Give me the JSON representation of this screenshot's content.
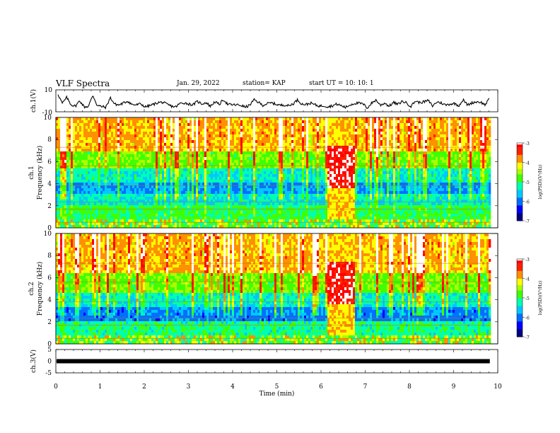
{
  "header": {
    "title": "VLF Spectra",
    "date": "Jan. 29, 2022",
    "station": "station= KAP",
    "start_ut": "start  UT =   10: 10: 1"
  },
  "chart_data": [
    {
      "type": "line",
      "ylabel": "ch.1(V)",
      "ylim": [
        -10,
        10
      ],
      "yticks": [
        "10",
        "-10"
      ],
      "xlim": [
        0,
        10
      ],
      "series": [
        {
          "values": [
            6.2,
            -2.4,
            3.1,
            -3.5,
            -4.9,
            0.2,
            -5.5,
            -5.1,
            5.3,
            -4.3,
            -5.2,
            -6.0,
            2.9,
            -3.0,
            -3.8,
            -2.1,
            -0.2,
            -3.4,
            -3.7,
            -2.7,
            -5.6,
            -4.5,
            -3.1,
            -1.5,
            -1.3,
            -3.2,
            -4.8,
            -5.6,
            -2.4,
            -1.8,
            -2.9,
            -3.6,
            -0.6,
            -2.7,
            -1.6,
            -5.0,
            -0.8,
            -3.4,
            1.3,
            -3.4,
            -3.6,
            -3.7,
            -4.1,
            -5.8,
            -4.0,
            0.9,
            -1.3,
            -4.1,
            -2.6,
            -1.9,
            -3.0,
            -4.1,
            -3.6,
            -4.6,
            -2.5,
            0.9,
            -3.0,
            -3.3,
            -2.1,
            -3.6,
            -4.8,
            -4.4,
            -5.3,
            -4.5,
            -3.0,
            -4.4,
            -6.0,
            -3.8,
            -2.3,
            -2.1,
            -2.9,
            -6.5,
            -2.1,
            0.8,
            -4.1,
            -1.9,
            -5.0,
            -1.5,
            -3.3,
            -0.4,
            -1.8,
            -5.1,
            -0.2,
            -1.6,
            -0.9,
            0.3,
            -4.8,
            -0.9,
            -2.0,
            -3.9,
            -2.9,
            -2.4,
            -4.4,
            0.9,
            -3.8,
            -1.9,
            -0.9,
            -1.1,
            -3.7,
            1.6
          ]
        }
      ]
    },
    {
      "type": "heatmap",
      "ylabel": "ch.1\nFrequency (kHz)",
      "ylim": [
        0,
        10
      ],
      "yticks": [
        "0",
        "2",
        "4",
        "6",
        "8",
        "10"
      ],
      "xlim": [
        0,
        10
      ],
      "colorbar": {
        "range": [
          -7,
          -3
        ],
        "ticks": [
          "-3",
          "-4",
          "-5",
          "-6",
          "-7"
        ],
        "label": "log(PSD)(V²/Hz)"
      },
      "bands": [
        {
          "f_min": 0.0,
          "f_max": 0.8,
          "level": -4.5,
          "note": "mixed striped low band"
        },
        {
          "f_min": 0.8,
          "f_max": 2.0,
          "level": -5.0
        },
        {
          "f_min": 2.0,
          "f_max": 3.0,
          "level": -5.4
        },
        {
          "f_min": 3.0,
          "f_max": 4.2,
          "level": -5.9
        },
        {
          "f_min": 4.2,
          "f_max": 5.5,
          "level": -5.4
        },
        {
          "f_min": 5.5,
          "f_max": 7.0,
          "level": -4.8
        },
        {
          "f_min": 7.0,
          "f_max": 10.0,
          "level": -4.1
        }
      ],
      "broadband_interval_min": [
        6.1,
        6.75
      ]
    },
    {
      "type": "heatmap",
      "ylabel": "ch.2\nFrequency (kHz)",
      "ylim": [
        0,
        10
      ],
      "yticks": [
        "0",
        "2",
        "4",
        "6",
        "8",
        "10"
      ],
      "xlim": [
        0,
        10
      ],
      "colorbar": {
        "range": [
          -7,
          -3
        ],
        "ticks": [
          "-3",
          "-4",
          "-5",
          "-6",
          "-7"
        ],
        "label": "log(PSD)(V²/Hz)"
      },
      "bands": [
        {
          "f_min": 0.0,
          "f_max": 0.8,
          "level": -4.5,
          "note": "mixed striped low band"
        },
        {
          "f_min": 0.8,
          "f_max": 2.0,
          "level": -5.2
        },
        {
          "f_min": 2.0,
          "f_max": 3.3,
          "level": -6.0
        },
        {
          "f_min": 3.3,
          "f_max": 4.5,
          "level": -5.4
        },
        {
          "f_min": 4.5,
          "f_max": 6.5,
          "level": -4.8
        },
        {
          "f_min": 6.5,
          "f_max": 10.0,
          "level": -4.1
        }
      ],
      "broadband_interval_min": [
        6.1,
        6.75
      ]
    },
    {
      "type": "line",
      "ylabel": "ch.3(V)",
      "ylim": [
        -5,
        5
      ],
      "yticks": [
        "5",
        "0",
        "-5"
      ],
      "xlim": [
        0,
        10
      ],
      "series": [
        {
          "values": [
            0,
            0,
            0,
            0,
            0,
            0,
            0,
            0,
            0,
            0
          ]
        }
      ],
      "xlabel": "Time (min)",
      "xticks": [
        "0",
        "1",
        "2",
        "3",
        "4",
        "5",
        "6",
        "7",
        "8",
        "9",
        "10"
      ]
    }
  ],
  "colors": {
    "colormap": [
      "#000080",
      "#0000ff",
      "#0080ff",
      "#00ffff",
      "#00ff80",
      "#80ff00",
      "#ffff00",
      "#ff8000",
      "#ff0000",
      "#ffffff"
    ],
    "axis": "#000000"
  }
}
